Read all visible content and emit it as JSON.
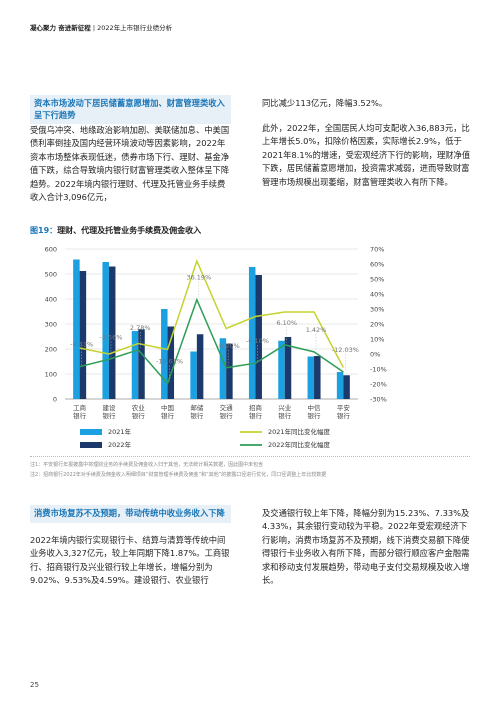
{
  "header": {
    "bold": "凝心聚力 奋进新征程",
    "rest": "| 2022年上市银行业绩分析"
  },
  "section1": {
    "heading": "资本市场波动下居民储蓄意愿增加、财富管理类收入呈下行趋势",
    "left_para": "受俄乌冲突、地缘政治影响加剧、美联储加息、中美国债利率倒挂及国内经营环境波动等因素影响，2022年资本市场整体表现低迷，债券市场下行、理财、基金净值下跌，综合导致境内银行财富管理类收入整体呈下降趋势。2022年境内银行理财、代理及托管业务手续费收入合计3,096亿元，",
    "right_para1": "同比减少113亿元，降幅3.52%。",
    "right_para2": "此外，2022年，全国居民人均可支配收入36,883元，比上年增长5.0%，扣除价格因素，实际增长2.9%，低于2021年8.1%的增速，受宏观经济下行的影响，理财净值下跌，居民储蓄意愿增加，投资需求减弱，进而导致财富管理市场规模出现萎缩，财富管理类收入有所下降。"
  },
  "figure": {
    "num": "图19：",
    "title": "理财、代理及托管业务手续费及佣金收入"
  },
  "chart_data": {
    "type": "bar",
    "categories": [
      "工商银行",
      "建设银行",
      "农业银行",
      "中国银行",
      "邮储银行",
      "交通银行",
      "招商银行",
      "兴业银行",
      "中信银行",
      "平安银行"
    ],
    "category_lines": [
      [
        "工商",
        "银行"
      ],
      [
        "建设",
        "银行"
      ],
      [
        "农业",
        "银行"
      ],
      [
        "中国",
        "银行"
      ],
      [
        "邮储",
        "银行"
      ],
      [
        "交通",
        "银行"
      ],
      [
        "招商",
        "银行"
      ],
      [
        "兴业",
        "银行"
      ],
      [
        "中信",
        "银行"
      ],
      [
        "平安",
        "银行"
      ]
    ],
    "series": [
      {
        "name": "2021年",
        "color": "#1ba1e2",
        "values": [
          558,
          548,
          272,
          360,
          190,
          243,
          528,
          233,
          170,
          108
        ]
      },
      {
        "name": "2022年",
        "color": "#1b3a6b",
        "values": [
          512,
          530,
          279,
          290,
          259,
          222,
          496,
          248,
          172,
          95
        ]
      }
    ],
    "lines": [
      {
        "name": "2021年同比变化幅度",
        "color": "#c5d32e",
        "values": [
          4,
          0,
          7,
          3,
          62,
          17,
          25,
          28,
          28,
          -9
        ]
      },
      {
        "name": "2022年同比变化幅度",
        "color": "#2e9e57",
        "values": [
          -8.41,
          -3.56,
          2.78,
          -19.61,
          36.19,
          -9.2,
          -6.1,
          6.1,
          1.42,
          -12.03
        ]
      }
    ],
    "line_labels": [
      "-8.41%",
      "-3.56%",
      "2.78%",
      "-19.61%",
      "36.19%",
      "-9.20%",
      "-6.10%",
      "6.10%",
      "1.42%",
      "-12.03%"
    ],
    "yleft": {
      "min": 0,
      "max": 600,
      "ticks": [
        "0",
        "100",
        "200",
        "300",
        "400",
        "500",
        "600"
      ]
    },
    "yright": {
      "min": -30,
      "max": 70,
      "ticks": [
        "-30%",
        "-20%",
        "-10%",
        "0%",
        "10%",
        "20%",
        "30%",
        "40%",
        "50%",
        "60%",
        "70%"
      ]
    },
    "grid": true,
    "legend_placement": "bottom"
  },
  "notes": {
    "n1": "注1：平安银行年报披露中将理财业务的手续费及佣金收入归于其他，无法统计相关数据，因此图中未包含",
    "n2": "注2：招商银行2022年对手续费及佣金收入明细项目“财富管理手续费及佣金”和“其他”的披露口径进行优化，同口径调整上年比较数据"
  },
  "section2": {
    "heading": "消费市场复苏不及预期，带动传统中收业务收入下降",
    "left_para": "2022年境内银行实现银行卡、结算与清算等传统中间业务收入3,327亿元，较上年同期下降1.87%。工商银行、招商银行及兴业银行较上年增长，增幅分别为9.02%、9.53%及4.59%。建设银行、农业银行",
    "right_para": "及交通银行较上年下降，降幅分别为15.23%、7.33%及4.33%，其余银行变动较为平稳。2022年受宏观经济下行影响，消费市场复苏不及预期，线下消费交易额下降使得银行卡业务收入有所下降，而部分银行顺应客户金融需求和移动支付发展趋势，带动电子支付交易规模及收入增长。"
  },
  "page_number": "25"
}
